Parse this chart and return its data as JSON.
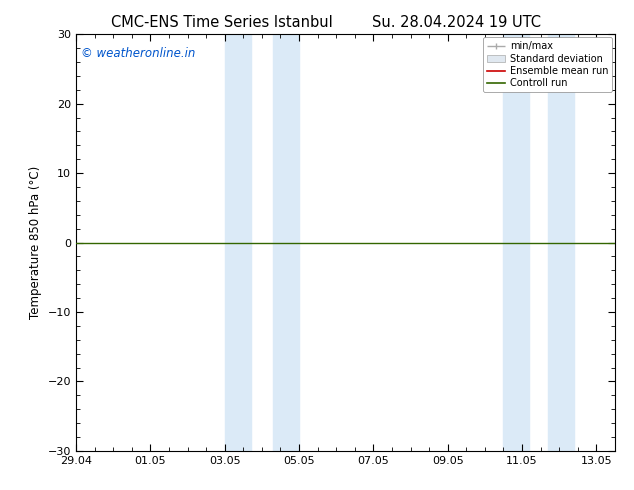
{
  "title_left": "CMC-ENS Time Series Istanbul",
  "title_right": "Su. 28.04.2024 19 UTC",
  "ylabel": "Temperature 850 hPa (°C)",
  "xlabel": "",
  "xlim": [
    0,
    14.5
  ],
  "ylim": [
    -30,
    30
  ],
  "yticks": [
    -30,
    -20,
    -10,
    0,
    10,
    20,
    30
  ],
  "xtick_labels": [
    "29.04",
    "01.05",
    "03.05",
    "05.05",
    "07.05",
    "09.05",
    "11.05",
    "13.05"
  ],
  "xtick_positions": [
    0,
    2,
    4,
    6,
    8,
    10,
    12,
    14
  ],
  "shaded_bands": [
    [
      4.0,
      4.7
    ],
    [
      5.3,
      6.0
    ],
    [
      11.5,
      12.2
    ],
    [
      12.7,
      13.4
    ]
  ],
  "shade_color": "#dbeaf7",
  "watermark_text": "© weatheronline.in",
  "watermark_color": "#0055cc",
  "line_y_value": 0,
  "line_color_control": "#336600",
  "line_color_ensemble": "#cc0000",
  "legend_labels": [
    "min/max",
    "Standard deviation",
    "Ensemble mean run",
    "Controll run"
  ],
  "legend_colors_line": [
    "#aaaaaa",
    "#cccccc",
    "#cc0000",
    "#336600"
  ],
  "background_color": "#ffffff",
  "title_fontsize": 10.5,
  "axis_label_fontsize": 8.5,
  "tick_fontsize": 8.0
}
